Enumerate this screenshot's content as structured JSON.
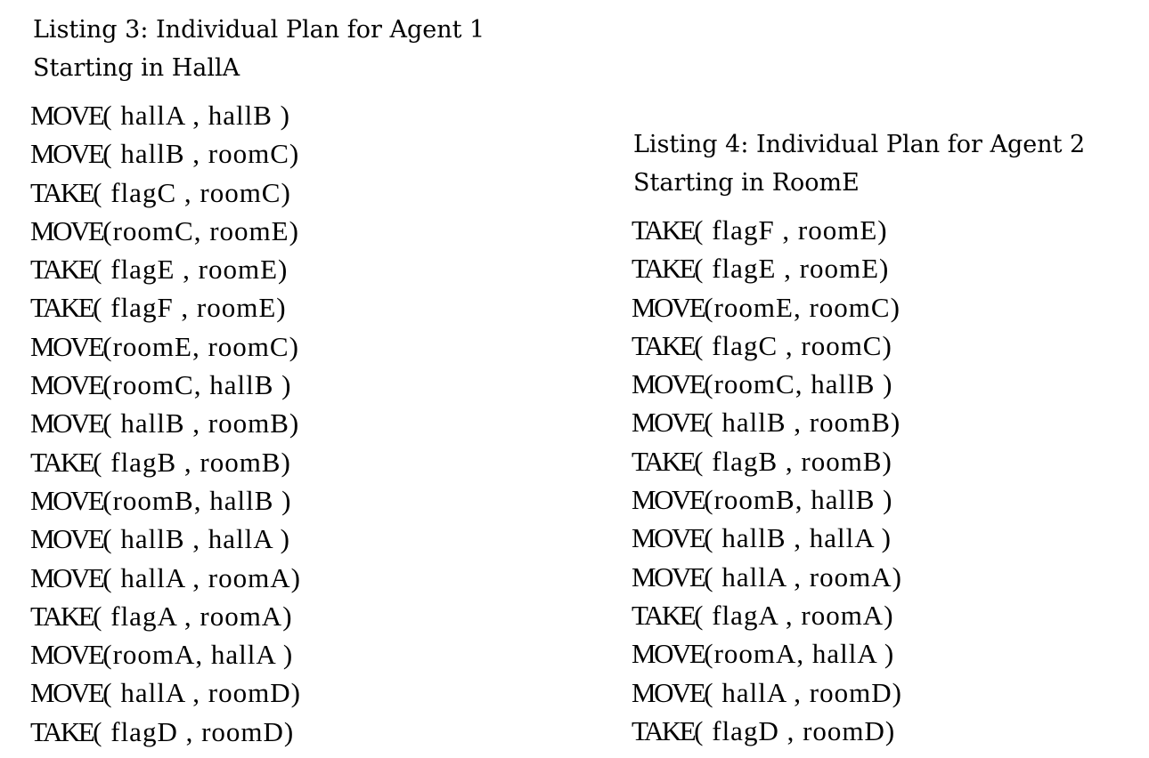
{
  "listings": [
    {
      "caption_line1": "Listing 3: Individual Plan for Agent 1",
      "caption_line2": "Starting in HallA",
      "steps": [
        "MOVE( hallA , hallB )",
        "MOVE( hallB , roomC)",
        "TAKE( flagC , roomC)",
        "MOVE(roomC, roomE)",
        "TAKE( flagE , roomE)",
        "TAKE( flagF , roomE)",
        "MOVE(roomE, roomC)",
        "MOVE(roomC, hallB )",
        "MOVE( hallB , roomB)",
        "TAKE( flagB , roomB)",
        "MOVE(roomB, hallB )",
        "MOVE( hallB , hallA )",
        "MOVE( hallA , roomA)",
        "TAKE( flagA , roomA)",
        "MOVE(roomA, hallA )",
        "MOVE( hallA , roomD)",
        "TAKE( flagD , roomD)"
      ]
    },
    {
      "caption_line1": "Listing 4: Individual Plan for Agent 2",
      "caption_line2": "Starting in RoomE",
      "steps": [
        "TAKE( flagF , roomE)",
        "TAKE( flagE , roomE)",
        "MOVE(roomE, roomC)",
        "TAKE( flagC , roomC)",
        "MOVE(roomC, hallB )",
        "MOVE( hallB , roomB)",
        "TAKE( flagB , roomB)",
        "MOVE(roomB, hallB )",
        "MOVE( hallB , hallA )",
        "MOVE( hallA , roomA)",
        "TAKE( flagA , roomA)",
        "MOVE(roomA, hallA )",
        "MOVE( hallA , roomD)",
        "TAKE( flagD , roomD)"
      ]
    }
  ]
}
